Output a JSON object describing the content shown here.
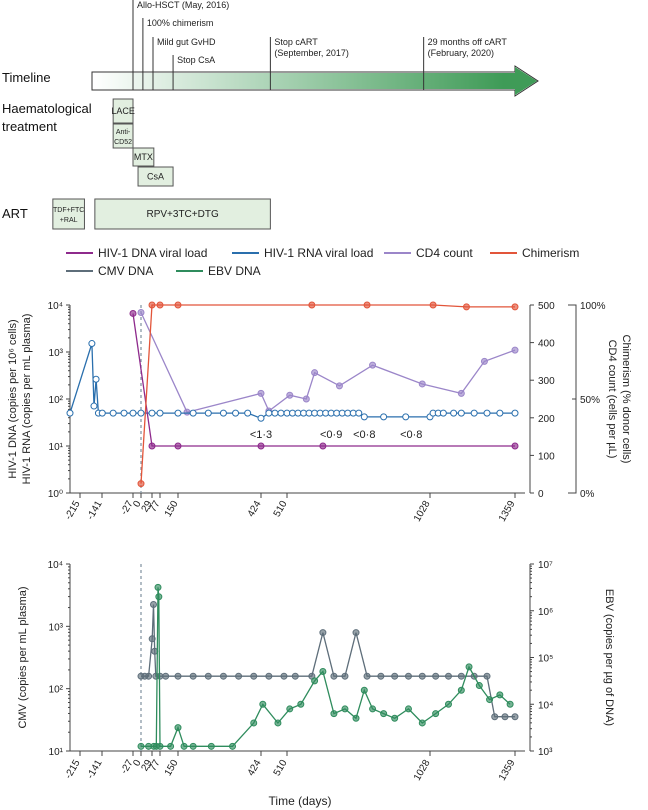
{
  "timeline": {
    "label": "Timeline",
    "events": [
      {
        "day": -27,
        "text": "Allo-HSCT (May, 2016)",
        "row": 0
      },
      {
        "day": 5,
        "text": "100% chimerism",
        "row": 1
      },
      {
        "day": 35,
        "text": "Mild gut GvHD",
        "row": 2
      },
      {
        "day": 130,
        "text": "Stop CsA",
        "row": 3
      },
      {
        "day": 455,
        "text": "Stop cART",
        "text2": "(September, 2017)",
        "row": 2
      },
      {
        "day": 1005,
        "text": "29 months off cART",
        "text2": "(February, 2020)",
        "row": 2
      }
    ]
  },
  "treatment": {
    "haem_label": [
      "Haematological",
      "treatment"
    ],
    "art_label": "ART",
    "haem_boxes": [
      {
        "name": "lace-box",
        "text": [
          "LACE"
        ],
        "start": -100,
        "end": -27,
        "row": 0
      },
      {
        "name": "anti-cd52-box",
        "text": [
          "Anti-",
          "CD52"
        ],
        "start": -100,
        "end": -27,
        "row": 1
      },
      {
        "name": "mtx-box",
        "text": [
          "MTX"
        ],
        "start": -27,
        "end": 40,
        "row": 2
      },
      {
        "name": "csa-box",
        "text": [
          "CsA"
        ],
        "start": -10,
        "end": 130,
        "row": 3
      }
    ],
    "art_boxes": [
      {
        "name": "tdf-ftc-ral-box",
        "text": [
          "TDF+FTC",
          "+RAL"
        ],
        "start": -310,
        "end": -200
      },
      {
        "name": "rpv-3tc-dtg-box",
        "text": [
          "RPV+3TC+DTG"
        ],
        "start": -165,
        "end": 455
      }
    ]
  },
  "legend": [
    {
      "label": "HIV-1 DNA viral load",
      "color": "#8e2a8c"
    },
    {
      "label": "HIV-1 RNA viral load",
      "color": "#2a6fad"
    },
    {
      "label": "CD4 count",
      "color": "#9b86c9"
    },
    {
      "label": "Chimerism",
      "color": "#e2553a"
    },
    {
      "label": "CMV DNA",
      "color": "#5e6e7a"
    },
    {
      "label": "EBV DNA",
      "color": "#2f8c5d"
    }
  ],
  "chart_data": [
    {
      "type": "line",
      "x_ticks": [
        -215,
        -141,
        -27,
        0,
        29,
        77,
        150,
        424,
        510,
        1028,
        1359
      ],
      "ylabel_left": [
        "HIV-1 DNA (copies per 10⁶ cells)",
        "HIV-1 RNA (copies per mL plasma)"
      ],
      "ylabel_right": [
        "Chimerism (% donor cells)",
        "CD4 count (cells per µL)"
      ],
      "y_left_ticks": [
        "10⁰",
        "10¹",
        "10²",
        "10³",
        "10⁴"
      ],
      "y_left_log_range": [
        0,
        4
      ],
      "y_right_cd4_ticks": [
        0,
        100,
        200,
        300,
        400,
        500
      ],
      "y_right_cd4_range": [
        0,
        500
      ],
      "y_right_chim_ticks": [
        "0%",
        "50%",
        "100%"
      ],
      "series": [
        {
          "name": "HIV-1 RNA viral load",
          "color": "#2a6fad",
          "points": [
            [
              -250,
              1.7
            ],
            [
              -175,
              3.18
            ],
            [
              -168,
              1.85
            ],
            [
              -161,
              2.42
            ],
            [
              -153,
              1.7
            ],
            [
              -140,
              1.7
            ],
            [
              -100,
              1.7
            ],
            [
              -60,
              1.7
            ],
            [
              -27,
              1.7
            ],
            [
              0,
              1.7
            ],
            [
              29,
              1.7
            ],
            [
              77,
              1.7
            ],
            [
              150,
              1.7
            ],
            [
              200,
              1.7
            ],
            [
              250,
              1.7
            ],
            [
              300,
              1.7
            ],
            [
              340,
              1.7
            ],
            [
              380,
              1.7
            ],
            [
              424,
              1.59
            ],
            [
              450,
              1.7
            ],
            [
              470,
              1.7
            ],
            [
              490,
              1.7
            ],
            [
              510,
              1.7
            ],
            [
              530,
              1.7
            ],
            [
              550,
              1.7
            ],
            [
              570,
              1.7
            ],
            [
              590,
              1.7
            ],
            [
              610,
              1.7
            ],
            [
              630,
              1.7
            ],
            [
              650,
              1.7
            ],
            [
              670,
              1.7
            ],
            [
              690,
              1.7
            ],
            [
              710,
              1.7
            ],
            [
              730,
              1.7
            ],
            [
              750,
              1.7
            ],
            [
              770,
              1.7
            ],
            [
              790,
              1.62
            ],
            [
              860,
              1.62
            ],
            [
              940,
              1.62
            ],
            [
              1028,
              1.62
            ],
            [
              1040,
              1.7
            ],
            [
              1060,
              1.7
            ],
            [
              1080,
              1.7
            ],
            [
              1120,
              1.7
            ],
            [
              1150,
              1.7
            ],
            [
              1200,
              1.7
            ],
            [
              1250,
              1.7
            ],
            [
              1300,
              1.7
            ],
            [
              1359,
              1.7
            ]
          ],
          "annotations": [
            {
              "x": 424,
              "text": "<1·3"
            },
            {
              "x": 670,
              "text": "<0·9"
            },
            {
              "x": 790,
              "text": "<0·8"
            },
            {
              "x": 960,
              "text": "<0·8"
            }
          ]
        },
        {
          "name": "HIV-1 DNA viral load",
          "color": "#8e2a8c",
          "points": [
            [
              -27,
              3.82
            ],
            [
              29,
              1
            ],
            [
              150,
              1
            ],
            [
              424,
              1
            ],
            [
              640,
              1
            ],
            [
              1359,
              1
            ]
          ]
        },
        {
          "name": "CD4 count",
          "color": "#9b86c9",
          "points": [
            [
              0,
              480
            ],
            [
              180,
              215
            ],
            [
              424,
              265
            ],
            [
              450,
              218
            ],
            [
              520,
              260
            ],
            [
              580,
              250
            ],
            [
              610,
              320
            ],
            [
              700,
              285
            ],
            [
              820,
              340
            ],
            [
              1000,
              290
            ],
            [
              1150,
              265
            ],
            [
              1240,
              350
            ],
            [
              1359,
              380
            ]
          ]
        },
        {
          "name": "Chimerism",
          "color": "#e2553a",
          "points": [
            [
              0,
              25
            ],
            [
              29,
              500
            ],
            [
              77,
              500
            ],
            [
              150,
              500
            ],
            [
              600,
              500
            ],
            [
              800,
              500
            ],
            [
              1040,
              500
            ],
            [
              1170,
              495
            ],
            [
              1359,
              495
            ]
          ]
        }
      ],
      "hsct_day": 0
    },
    {
      "type": "line",
      "x_ticks": [
        -215,
        -141,
        -27,
        0,
        29,
        77,
        150,
        424,
        510,
        1028,
        1359
      ],
      "xlabel": "Time (days)",
      "ylabel_left": "CMV (copies per mL plasma)",
      "ylabel_right": "EBV (copies per µg of DNA)",
      "y_left_ticks": [
        "10¹",
        "10²",
        "10³",
        "10⁴"
      ],
      "y_left_log_range": [
        1,
        4
      ],
      "y_right_ticks": [
        "10³",
        "10⁴",
        "10⁵",
        "10⁶",
        "10⁷"
      ],
      "y_right_log_range": [
        3,
        7
      ],
      "series": [
        {
          "name": "CMV DNA",
          "color": "#5e6e7a",
          "points": [
            [
              0,
              2.2
            ],
            [
              10,
              2.2
            ],
            [
              20,
              2.2
            ],
            [
              30,
              2.8
            ],
            [
              38,
              3.35
            ],
            [
              45,
              2.6
            ],
            [
              52,
              2.2
            ],
            [
              77,
              2.2
            ],
            [
              100,
              2.2
            ],
            [
              150,
              2.2
            ],
            [
              200,
              2.2
            ],
            [
              250,
              2.2
            ],
            [
              300,
              2.2
            ],
            [
              350,
              2.2
            ],
            [
              400,
              2.2
            ],
            [
              450,
              2.2
            ],
            [
              500,
              2.2
            ],
            [
              540,
              2.2
            ],
            [
              600,
              2.2
            ],
            [
              640,
              2.9
            ],
            [
              680,
              2.2
            ],
            [
              720,
              2.2
            ],
            [
              760,
              2.9
            ],
            [
              800,
              2.2
            ],
            [
              850,
              2.2
            ],
            [
              900,
              2.2
            ],
            [
              950,
              2.2
            ],
            [
              1000,
              2.2
            ],
            [
              1050,
              2.2
            ],
            [
              1100,
              2.2
            ],
            [
              1150,
              2.2
            ],
            [
              1200,
              2.2
            ],
            [
              1250,
              2.2
            ],
            [
              1280,
              1.55
            ],
            [
              1320,
              1.55
            ],
            [
              1359,
              1.55
            ]
          ]
        },
        {
          "name": "EBV DNA",
          "color": "#2f8c5d",
          "points": [
            [
              0,
              3.1
            ],
            [
              20,
              3.1
            ],
            [
              40,
              3.1
            ],
            [
              55,
              3.1
            ],
            [
              65,
              6.5
            ],
            [
              70,
              6.3
            ],
            [
              77,
              3.1
            ],
            [
              120,
              3.1
            ],
            [
              150,
              3.5
            ],
            [
              170,
              3.1
            ],
            [
              200,
              3.1
            ],
            [
              260,
              3.1
            ],
            [
              330,
              3.1
            ],
            [
              400,
              3.6
            ],
            [
              430,
              4.0
            ],
            [
              480,
              3.6
            ],
            [
              520,
              3.9
            ],
            [
              560,
              4.0
            ],
            [
              610,
              4.5
            ],
            [
              640,
              4.7
            ],
            [
              680,
              3.8
            ],
            [
              720,
              3.9
            ],
            [
              760,
              3.7
            ],
            [
              790,
              4.3
            ],
            [
              820,
              3.9
            ],
            [
              860,
              3.8
            ],
            [
              900,
              3.7
            ],
            [
              950,
              3.9
            ],
            [
              1000,
              3.6
            ],
            [
              1050,
              3.8
            ],
            [
              1100,
              4.0
            ],
            [
              1150,
              4.3
            ],
            [
              1180,
              4.8
            ],
            [
              1220,
              4.4
            ],
            [
              1260,
              4.1
            ],
            [
              1300,
              4.2
            ],
            [
              1340,
              4.0
            ]
          ]
        }
      ],
      "hsct_day": 0
    }
  ]
}
